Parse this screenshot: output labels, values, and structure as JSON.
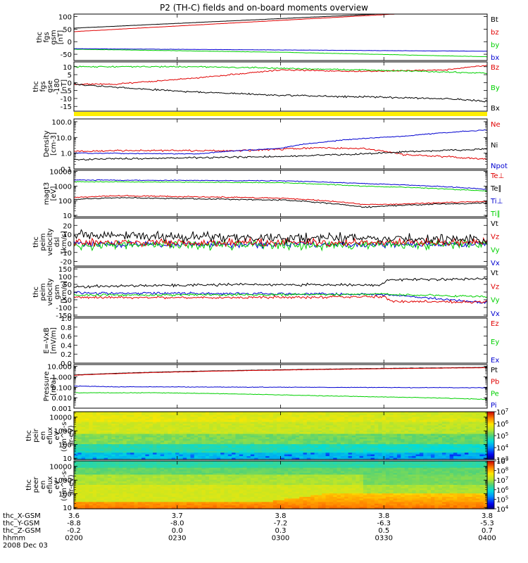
{
  "title": "P2 (TH-C) fields and on-board moments overview",
  "colors": {
    "black": "#000000",
    "red": "#e00000",
    "green": "#00d000",
    "blue": "#0000d0",
    "yellow": "#ffee00"
  },
  "chart_data": [
    {
      "type": "line",
      "name": "fgs_gsm",
      "ylabel": [
        "thc",
        "fgs",
        "gsm",
        "[nT]"
      ],
      "ylim": [
        -75,
        110
      ],
      "yticks": [
        100,
        50,
        0,
        -50
      ],
      "ytick_labels": [
        "100",
        "50",
        "0",
        "-50"
      ],
      "series": [
        {
          "name": "Bt",
          "color": "#000000",
          "x": [
            0,
            1
          ],
          "y": [
            54,
            130
          ],
          "noise": 0.3
        },
        {
          "name": "bz",
          "color": "#e00000",
          "x": [
            0,
            1
          ],
          "y": [
            40,
            130
          ],
          "noise": 0.3
        },
        {
          "name": "by",
          "color": "#00d000",
          "x": [
            0,
            0.5,
            1
          ],
          "y": [
            -30,
            -42,
            -60
          ],
          "noise": 0.5
        },
        {
          "name": "bx",
          "color": "#0000d0",
          "x": [
            0,
            1
          ],
          "y": [
            -28,
            -38
          ],
          "noise": 0.4
        }
      ],
      "legend": [
        "Bt",
        "bz",
        "by",
        "bx"
      ]
    },
    {
      "type": "line",
      "name": "fgs_gse",
      "ylabel": [
        "thc",
        "fgs",
        "gse",
        "-180",
        "[nT]"
      ],
      "ylim": [
        -18,
        13
      ],
      "yticks": [
        10,
        5,
        0,
        -5,
        -10,
        -15
      ],
      "ytick_labels": [
        "10",
        "5",
        "0",
        "-5",
        "-10",
        "-15"
      ],
      "series": [
        {
          "name": "Bz",
          "color": "#e00000",
          "x": [
            0,
            0.1,
            0.3,
            0.5,
            0.7,
            0.9,
            1
          ],
          "y": [
            -1,
            -1,
            3,
            8,
            7,
            8,
            11
          ],
          "noise": 0.3
        },
        {
          "name": "By",
          "color": "#00d000",
          "x": [
            0,
            0.3,
            0.5,
            0.7,
            1
          ],
          "y": [
            10,
            10,
            9,
            8,
            6
          ],
          "noise": 0.3
        },
        {
          "name": "Bx",
          "color": "#000000",
          "x": [
            0,
            0.1,
            0.3,
            0.5,
            0.7,
            0.9,
            1
          ],
          "y": [
            -1,
            -3,
            -6,
            -8,
            -9,
            -10,
            -12
          ],
          "noise": 0.4
        }
      ],
      "legend": [
        "Bz",
        "By",
        "Bx"
      ]
    },
    {
      "type": "line",
      "name": "density",
      "ylabel": [
        "Density",
        "[cm-3]"
      ],
      "yscale": "log",
      "ylim": [
        0.1,
        150
      ],
      "yticks": [
        100,
        10,
        1,
        0.1
      ],
      "ytick_labels": [
        "100.0",
        "10.0",
        "1.0",
        "0.1"
      ],
      "series": [
        {
          "name": "Ne",
          "color": "#e00000",
          "x": [
            0,
            0.15,
            0.4,
            0.6,
            0.7,
            0.8,
            0.9,
            1
          ],
          "y": [
            1.3,
            1.5,
            1.4,
            2.2,
            1.9,
            0.8,
            0.6,
            0.4
          ],
          "noise": 0.04
        },
        {
          "name": "Ni",
          "color": "#000000",
          "x": [
            0,
            0.5,
            0.7,
            1
          ],
          "y": [
            0.4,
            0.6,
            0.9,
            1.8
          ],
          "noise": 0.04
        },
        {
          "name": "Npot",
          "color": "#0000d0",
          "x": [
            0,
            0.3,
            0.5,
            0.6,
            0.8,
            0.9,
            1
          ],
          "y": [
            1,
            0.9,
            2,
            5,
            12,
            20,
            30
          ],
          "noise": 0.02
        }
      ],
      "legend": [
        "Ne",
        "Ni",
        "Npot"
      ]
    },
    {
      "type": "line",
      "name": "temperature",
      "ylabel": [
        "magt3",
        "[eV]"
      ],
      "yscale": "log",
      "ylim": [
        8,
        12000
      ],
      "yticks": [
        10000,
        1000,
        100,
        10
      ],
      "ytick_labels": [
        "10000",
        "1000",
        "100",
        "10"
      ],
      "series": [
        {
          "name": "Ti⊥",
          "color": "#0000d0",
          "x": [
            0,
            0.5,
            0.7,
            1
          ],
          "y": [
            2600,
            2300,
            1500,
            600
          ],
          "noise": 0.02
        },
        {
          "name": "Ti∥",
          "color": "#00d000",
          "x": [
            0,
            0.5,
            0.7,
            1
          ],
          "y": [
            2000,
            1700,
            1000,
            450
          ],
          "noise": 0.02
        },
        {
          "name": "Te⊥",
          "color": "#e00000",
          "x": [
            0,
            0.1,
            0.5,
            0.7,
            0.8,
            1
          ],
          "y": [
            160,
            220,
            150,
            55,
            60,
            90
          ],
          "noise": 0.03
        },
        {
          "name": "Te∥",
          "color": "#000000",
          "x": [
            0,
            0.1,
            0.5,
            0.7,
            0.8,
            1
          ],
          "y": [
            120,
            160,
            110,
            35,
            50,
            70
          ],
          "noise": 0.03
        }
      ],
      "legend": [
        "Te⊥",
        "Te∥",
        "Ti⊥",
        "Ti∥"
      ]
    },
    {
      "type": "line",
      "name": "velocity_dsl",
      "ylabel": [
        "thc",
        "peim",
        "velocity",
        "dsl",
        "[km/s]"
      ],
      "ylim": [
        -25,
        28
      ],
      "yticks": [
        20,
        10,
        0,
        -10,
        -20
      ],
      "ytick_labels": [
        "20",
        "10",
        "0",
        "-10",
        "-20"
      ],
      "series": [
        {
          "name": "Vx",
          "color": "#0000d0",
          "x": [
            0,
            1
          ],
          "y": [
            -1,
            -1
          ],
          "noise": 2.5
        },
        {
          "name": "Vy",
          "color": "#00d000",
          "x": [
            0,
            1
          ],
          "y": [
            -2,
            -1
          ],
          "noise": 3.5
        },
        {
          "name": "Vz",
          "color": "#e00000",
          "x": [
            0,
            1
          ],
          "y": [
            1,
            1
          ],
          "noise": 3.0
        },
        {
          "name": "Vt",
          "color": "#000000",
          "x": [
            0,
            0.4,
            1
          ],
          "y": [
            9,
            7,
            4
          ],
          "noise": 4.0
        }
      ],
      "legend": [
        "Vt",
        "Vz",
        "Vy",
        "Vx"
      ]
    },
    {
      "type": "line",
      "name": "velocity_gsm",
      "ylabel": [
        "thc",
        "peim",
        "velocity",
        "gsm",
        "[km/s]"
      ],
      "ylim": [
        -160,
        160
      ],
      "yticks": [
        150,
        100,
        50,
        0,
        -50,
        -100,
        -150
      ],
      "ytick_labels": [
        "150",
        "100",
        "50",
        "0",
        "-50",
        "-100",
        "-150"
      ],
      "series": [
        {
          "name": "Vx",
          "color": "#0000d0",
          "x": [
            0,
            0.75,
            1
          ],
          "y": [
            -5,
            -15,
            -70
          ],
          "noise": 6
        },
        {
          "name": "Vy",
          "color": "#00d000",
          "x": [
            0,
            0.75,
            1
          ],
          "y": [
            -20,
            -15,
            -30
          ],
          "noise": 5
        },
        {
          "name": "Vz",
          "color": "#e00000",
          "x": [
            0,
            0.4,
            0.75,
            0.77,
            1
          ],
          "y": [
            -35,
            -35,
            -30,
            -60,
            -65
          ],
          "noise": 6
        },
        {
          "name": "Vt",
          "color": "#000000",
          "x": [
            0,
            0.4,
            0.74,
            0.76,
            1
          ],
          "y": [
            35,
            50,
            45,
            80,
            85
          ],
          "noise": 6
        }
      ],
      "legend": [
        "Vt",
        "Vz",
        "Vy",
        "Vx"
      ]
    },
    {
      "type": "line",
      "name": "efield",
      "ylabel": [
        "E=-VxB",
        "[mV/m]"
      ],
      "ylim": [
        0,
        1
      ],
      "yticks": [
        1,
        0.8,
        0.6,
        0.4,
        0.2,
        0
      ],
      "ytick_labels": [
        "1.0",
        "0.8",
        "0.6",
        "0.4",
        "0.2",
        "0.0"
      ],
      "series": [],
      "legend": [
        "Ez",
        "Ey",
        "Ex"
      ],
      "legend_colors": [
        "#e00000",
        "#00d000",
        "#0000d0"
      ]
    },
    {
      "type": "line",
      "name": "pressure",
      "ylabel": [
        "Pressure",
        "[nPa]"
      ],
      "yscale": "log",
      "ylim": [
        0.001,
        15
      ],
      "yticks": [
        10,
        1,
        0.1,
        0.01,
        0.001
      ],
      "ytick_labels": [
        "10.000",
        "1.000",
        "0.100",
        "0.010",
        "0.001"
      ],
      "series": [
        {
          "name": "Pt",
          "color": "#000000",
          "x": [
            0,
            1
          ],
          "y": [
            1.5,
            8
          ],
          "noise": 0.01
        },
        {
          "name": "Pb",
          "color": "#e00000",
          "x": [
            0,
            1
          ],
          "y": [
            1.4,
            7.5
          ],
          "noise": 0.01
        },
        {
          "name": "Pi",
          "color": "#0000d0",
          "x": [
            0,
            0.1,
            1
          ],
          "y": [
            0.13,
            0.11,
            0.09
          ],
          "noise": 0.02
        },
        {
          "name": "Pe",
          "color": "#00d000",
          "x": [
            0,
            0.2,
            0.6,
            1
          ],
          "y": [
            0.03,
            0.03,
            0.015,
            0.007
          ],
          "noise": 0.02
        }
      ],
      "legend": [
        "Pt",
        "Pb",
        "Pe",
        "Pi"
      ]
    },
    {
      "type": "heatmap",
      "name": "peir_spectrogram",
      "ylabel": [
        "thc",
        "peir",
        "en",
        "eflux",
        "eV",
        "(cm^2-s-",
        "sr-eV)"
      ],
      "yscale": "log",
      "ylim": [
        8,
        25000
      ],
      "yticks": [
        10000,
        1000,
        100,
        10
      ],
      "ytick_labels": [
        "10000",
        "1000",
        "100",
        "10"
      ],
      "colorbar_labels": [
        "10^7",
        "10^6",
        "10^5",
        "10^4",
        "10^3"
      ],
      "colorbar_range": [
        1000,
        10000000
      ]
    },
    {
      "type": "heatmap",
      "name": "peer_spectrogram",
      "ylabel": [
        "thc",
        "peer",
        "en",
        "eflux",
        "eV",
        "(cm^2-s-",
        "sr-eV)"
      ],
      "yscale": "log",
      "ylim": [
        8,
        25000
      ],
      "yticks": [
        10000,
        1000,
        100,
        10
      ],
      "ytick_labels": [
        "10000",
        "1000",
        "100",
        "10"
      ],
      "colorbar_labels": [
        "10^9",
        "10^8",
        "10^7",
        "10^6",
        "10^5",
        "10^4"
      ],
      "colorbar_range": [
        10000,
        1000000000
      ]
    }
  ],
  "xaxis": {
    "ticks_x": [
      0,
      0.25,
      0.5,
      0.75,
      1
    ],
    "rows": [
      {
        "label": "thc_X-GSM",
        "values": [
          "3.6",
          "3.7",
          "3.8",
          "3.8",
          "3.8"
        ]
      },
      {
        "label": "thc_Y-GSM",
        "values": [
          "-8.8",
          "-8.0",
          "-7.2",
          "-6.3",
          "-5.3"
        ]
      },
      {
        "label": "thc_Z-GSM",
        "values": [
          "-0.2",
          "0.0",
          "0.3",
          "0.5",
          "0.7"
        ]
      },
      {
        "label": "hhmm",
        "values": [
          "0200",
          "0230",
          "0300",
          "0330",
          "0400"
        ]
      }
    ],
    "date": "2008 Dec 03"
  }
}
